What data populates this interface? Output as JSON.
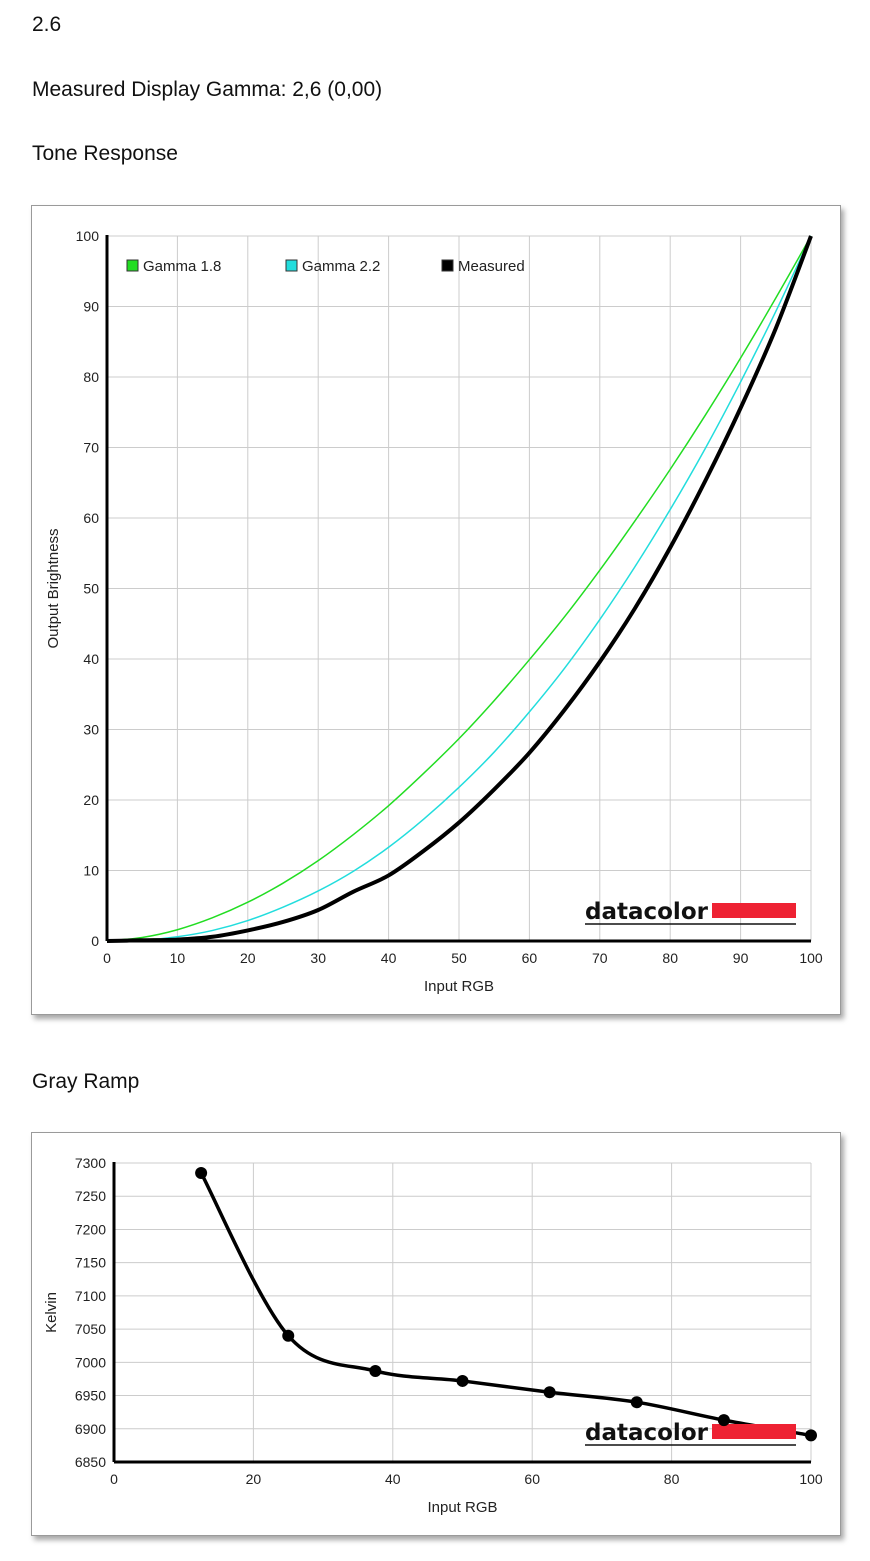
{
  "header": {
    "value": "2.6",
    "gamma_line": "Measured Display Gamma: 2,6 (0,00)",
    "tone_title": "Tone Response",
    "ramp_title": "Gray Ramp"
  },
  "logo_text": "datacolor",
  "colors": {
    "gamma18": "#22dd22",
    "gamma22": "#22dddd",
    "measured": "#000000",
    "logo_red": "#ee2233",
    "grid": "#cccccc"
  },
  "chart_data": [
    {
      "type": "line",
      "xlabel": "Input RGB",
      "ylabel": "Output Brightness",
      "xlim": [
        0,
        100
      ],
      "ylim": [
        0,
        100
      ],
      "xticks": [
        0,
        10,
        20,
        30,
        40,
        50,
        60,
        70,
        80,
        90,
        100
      ],
      "yticks": [
        0,
        10,
        20,
        30,
        40,
        50,
        60,
        70,
        80,
        90,
        100
      ],
      "grid": true,
      "legend": "top-left",
      "series": [
        {
          "name": "Gamma 1.8",
          "color": "#22dd22",
          "x": [
            0,
            5,
            10,
            15,
            20,
            25,
            30,
            35,
            40,
            45,
            50,
            55,
            60,
            65,
            70,
            75,
            80,
            85,
            90,
            95,
            100
          ],
          "y": [
            0,
            0.5,
            1.6,
            3.3,
            5.5,
            8.2,
            11.4,
            15.1,
            19.2,
            23.8,
            28.7,
            34.1,
            39.9,
            46.0,
            52.6,
            59.6,
            66.9,
            74.6,
            82.7,
            91.2,
            100
          ]
        },
        {
          "name": "Gamma 2.2",
          "color": "#22dddd",
          "x": [
            0,
            5,
            10,
            15,
            20,
            25,
            30,
            35,
            40,
            45,
            50,
            55,
            60,
            65,
            70,
            75,
            80,
            85,
            90,
            95,
            100
          ],
          "y": [
            0,
            0.1,
            0.6,
            1.5,
            2.9,
            4.8,
            7.1,
            9.9,
            13.3,
            17.3,
            21.8,
            26.8,
            32.5,
            38.7,
            45.6,
            53.1,
            61.2,
            69.9,
            79.3,
            89.3,
            100
          ]
        },
        {
          "name": "Measured",
          "color": "#000000",
          "x": [
            0,
            5,
            10,
            15,
            20,
            25,
            30,
            35,
            40,
            45,
            50,
            55,
            60,
            65,
            70,
            75,
            80,
            85,
            90,
            95,
            100
          ],
          "y": [
            0,
            0.1,
            0.2,
            0.6,
            1.5,
            2.7,
            4.4,
            7.0,
            9.3,
            12.8,
            16.8,
            21.5,
            26.7,
            32.8,
            39.6,
            47.2,
            55.8,
            65.3,
            75.6,
            86.9,
            100
          ]
        }
      ]
    },
    {
      "type": "line",
      "xlabel": "Input RGB",
      "ylabel": "Kelvin",
      "xlim": [
        0,
        100
      ],
      "ylim": [
        6850,
        7300
      ],
      "xticks": [
        0,
        20,
        40,
        60,
        80,
        100
      ],
      "yticks": [
        6850,
        6900,
        6950,
        7000,
        7050,
        7100,
        7150,
        7200,
        7250,
        7300
      ],
      "grid": true,
      "series": [
        {
          "color": "#000000",
          "x": [
            12.5,
            25,
            37.5,
            50,
            62.5,
            75,
            87.5,
            100
          ],
          "y": [
            7285,
            7040,
            6987,
            6972,
            6955,
            6940,
            6913,
            6890
          ]
        }
      ]
    }
  ]
}
